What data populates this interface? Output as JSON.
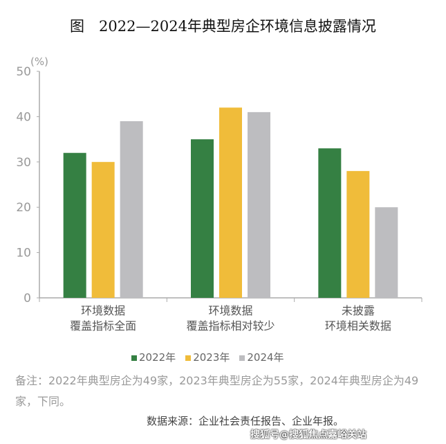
{
  "title": "图　2022—2024年典型房企环境信息披露情况",
  "chart_data": {
    "type": "bar",
    "ylabel": "(%)",
    "ylim": [
      0,
      50
    ],
    "yticks": [
      0,
      10,
      20,
      30,
      40,
      50
    ],
    "categories": [
      "环境数据\n覆盖指标全面",
      "环境数据\n覆盖指标相对较少",
      "未披露\n环境相关数据"
    ],
    "series": [
      {
        "name": "2022年",
        "color": "#358043",
        "values": [
          32,
          35,
          33
        ]
      },
      {
        "name": "2023年",
        "color": "#F0BC3A",
        "values": [
          30,
          42,
          28
        ]
      },
      {
        "name": "2024年",
        "color": "#BDBDC0",
        "values": [
          39,
          41,
          20
        ]
      }
    ],
    "legend": "bottom",
    "grid": false
  },
  "note": "备注：2022年典型房企为49家，2023年典型房企为55家，2024年典型房企为49家，下同。",
  "source": "数据来源：企业社会责任报告、企业年报。",
  "watermark": "搜狐号@搜狐焦点嘉峪关站"
}
